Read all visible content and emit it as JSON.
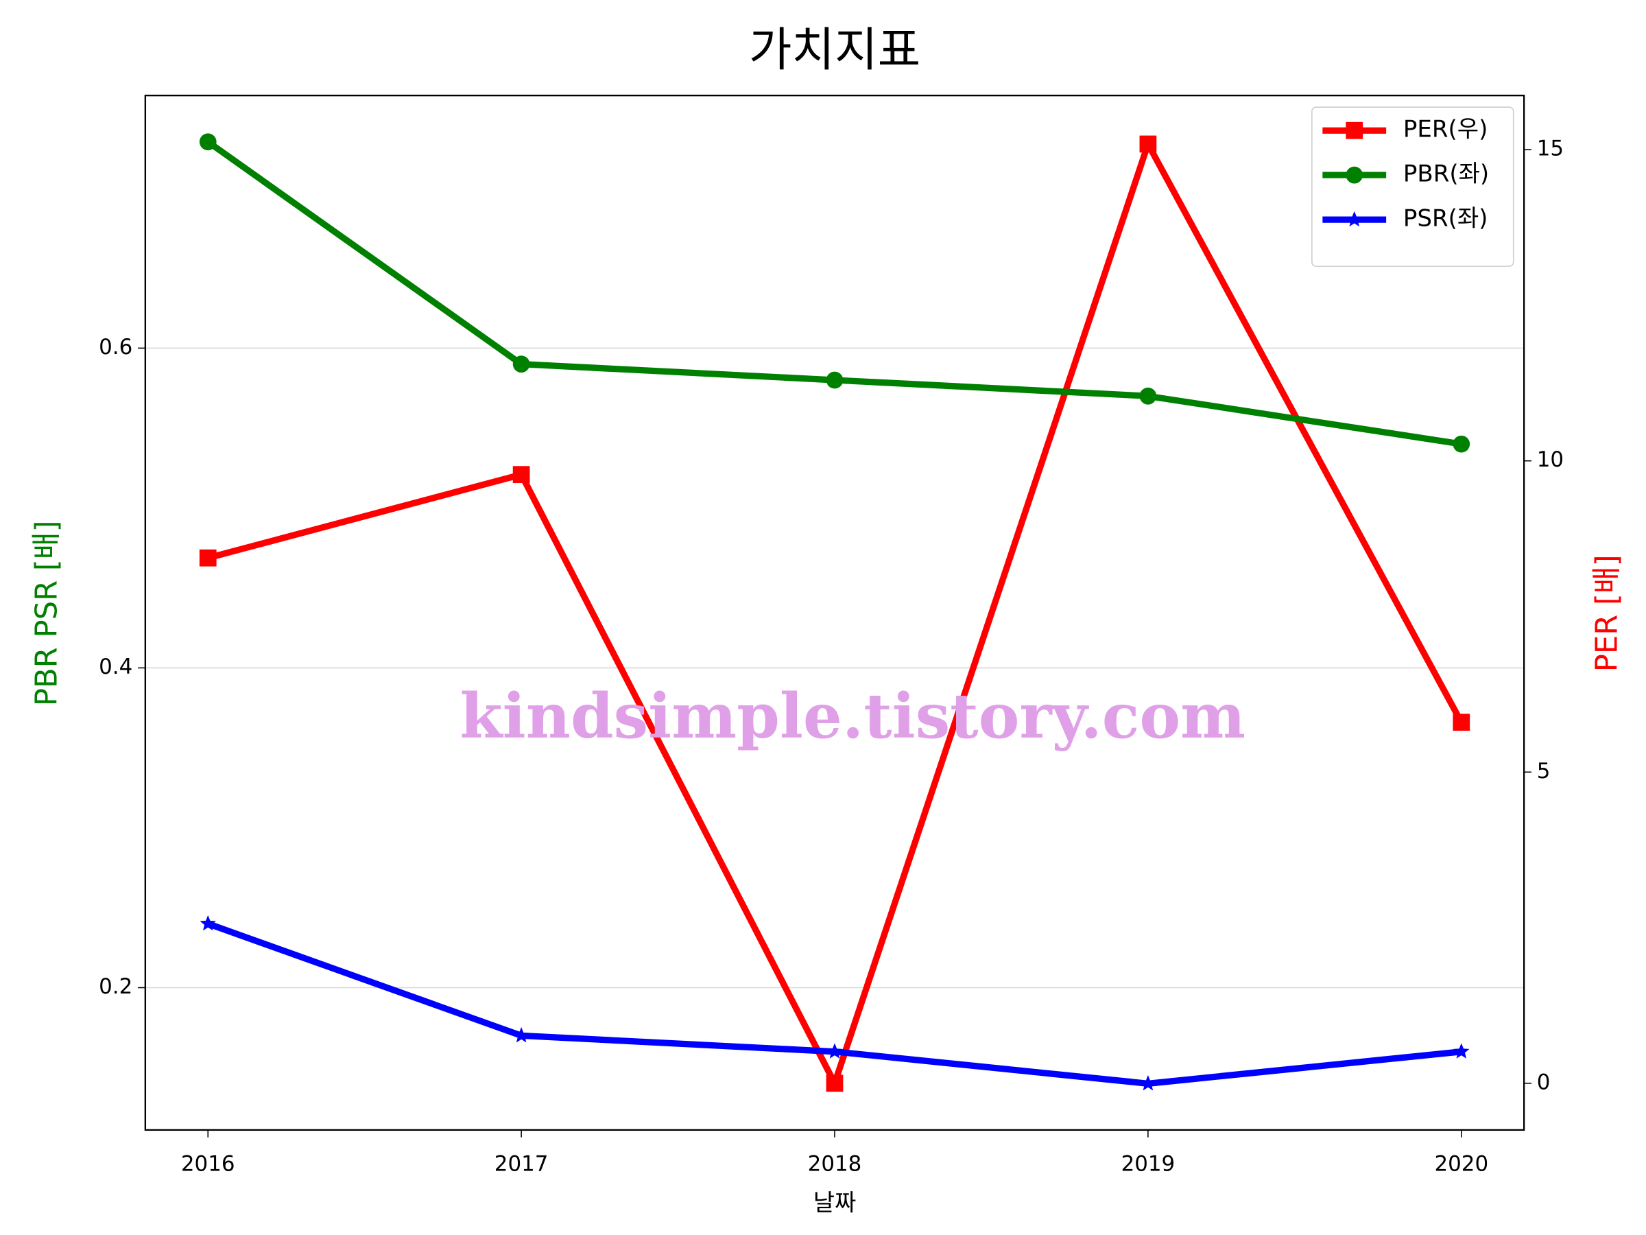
{
  "chart_data": {
    "type": "line",
    "title": "가치지표",
    "xlabel": "날짜",
    "ylabel": "PBR PSR [배]",
    "y2label": "PER [배]",
    "ylabel_color": "#008000",
    "y2label_color": "#ff0000",
    "x": [
      2016,
      2017,
      2018,
      2019,
      2020
    ],
    "xlim": [
      2015.8,
      2020.2
    ],
    "xticks": [
      2016,
      2017,
      2018,
      2019,
      2020
    ],
    "ylim": [
      0.111,
      0.758
    ],
    "yticks": [
      0.2,
      0.4,
      0.6
    ],
    "y2lim": [
      -0.75,
      15.87
    ],
    "y2ticks": [
      0,
      5,
      10,
      15
    ],
    "grid": true,
    "legend": "upper right",
    "annotation": "kindsimple.tistory.com",
    "series": [
      {
        "name": "PER(우)",
        "color": "#ff0000",
        "marker": "square",
        "axis": "y2",
        "values": [
          8.44,
          9.78,
          0,
          15.09,
          5.8
        ]
      },
      {
        "name": "PBR(좌)",
        "color": "#008000",
        "marker": "circle",
        "values": [
          0.729,
          0.59,
          0.58,
          0.57,
          0.54
        ]
      },
      {
        "name": "PSR(좌)",
        "color": "#0000ff",
        "marker": "star",
        "values": [
          0.24,
          0.17,
          0.16,
          0.14,
          0.16
        ]
      }
    ]
  }
}
